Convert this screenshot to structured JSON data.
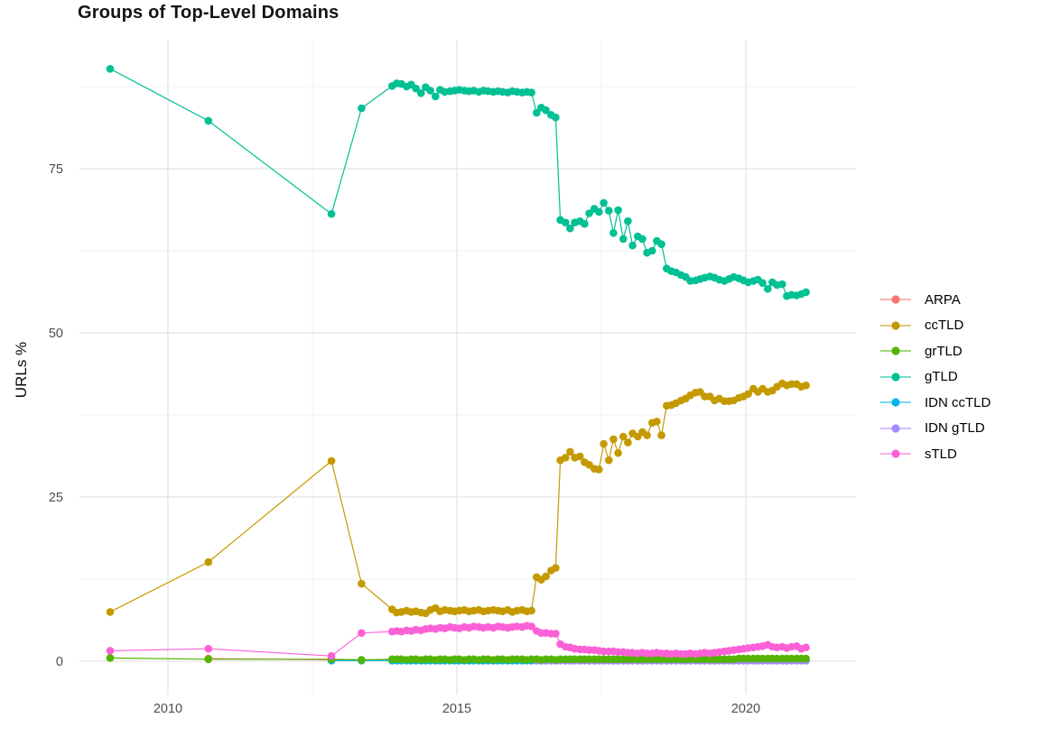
{
  "title": "Groups of Top-Level Domains",
  "y_axis": {
    "title": "URLs %",
    "tick_labels": [
      "0",
      "25",
      "50",
      "75"
    ]
  },
  "x_axis": {
    "tick_labels": [
      "2010",
      "2015",
      "2020"
    ]
  },
  "palette": {
    "ARPA": "#F8766D",
    "ccTLD": "#C49A00",
    "grTLD": "#53B400",
    "gTLD": "#00C094",
    "IDN ccTLD": "#00B6EB",
    "IDN gTLD": "#A58AFF",
    "sTLD": "#FB61D7",
    "grid_major": "#E4E4E4",
    "grid_minor": "#F0F0F0"
  },
  "chart_data": {
    "type": "line",
    "title": "Groups of Top-Level Domains",
    "xlabel": "",
    "ylabel": "URLs %",
    "legend_position": "right",
    "grid": true,
    "x_ticks": [
      2010,
      2015,
      2020
    ],
    "x_minor": [
      2012.5,
      2017.5
    ],
    "y_ticks": [
      0,
      25,
      50,
      75
    ],
    "y_minor": [
      12.5,
      37.5,
      62.5,
      87.5
    ],
    "xlim": [
      2008.45,
      2021.9
    ],
    "ylim": [
      -5,
      94.6
    ],
    "x": [
      2009.0,
      2010.7,
      2012.83,
      2013.35,
      2013.88,
      2013.96,
      2014.04,
      2014.13,
      2014.21,
      2014.29,
      2014.38,
      2014.46,
      2014.54,
      2014.63,
      2014.71,
      2014.79,
      2014.88,
      2014.96,
      2015.04,
      2015.13,
      2015.21,
      2015.29,
      2015.38,
      2015.46,
      2015.54,
      2015.63,
      2015.71,
      2015.79,
      2015.88,
      2015.96,
      2016.04,
      2016.13,
      2016.21,
      2016.29,
      2016.38,
      2016.46,
      2016.54,
      2016.63,
      2016.71,
      2016.79,
      2016.88,
      2016.96,
      2017.04,
      2017.13,
      2017.21,
      2017.29,
      2017.38,
      2017.46,
      2017.54,
      2017.63,
      2017.71,
      2017.79,
      2017.88,
      2017.96,
      2018.04,
      2018.13,
      2018.21,
      2018.29,
      2018.38,
      2018.46,
      2018.54,
      2018.63,
      2018.71,
      2018.79,
      2018.88,
      2018.96,
      2019.04,
      2019.13,
      2019.21,
      2019.29,
      2019.38,
      2019.46,
      2019.54,
      2019.63,
      2019.71,
      2019.79,
      2019.88,
      2019.96,
      2020.04,
      2020.13,
      2020.21,
      2020.29,
      2020.38,
      2020.46,
      2020.54,
      2020.63,
      2020.71,
      2020.79,
      2020.88,
      2020.96,
      2021.04
    ],
    "series": [
      {
        "name": "ARPA",
        "color": "#F8766D",
        "values": [
          null,
          0.4,
          0.2,
          0.2,
          0.1,
          0.1,
          0.1,
          0.1,
          0.1,
          0.1,
          0.1,
          0.1,
          0.1,
          0.1,
          0.1,
          0.1,
          0.1,
          0.1,
          0.1,
          0.1,
          0.1,
          0.1,
          0.1,
          0.1,
          0.1,
          0.1,
          0.1,
          0.1,
          0.1,
          0.1,
          0.1,
          0.1,
          0.1,
          0.1,
          0.1,
          0.1,
          0.1,
          0.1,
          0.1,
          0.1,
          0.1,
          0.1,
          0.1,
          0.1,
          0.1,
          0.1,
          0.1,
          0.1,
          0.1,
          0.1,
          0.1,
          0.1,
          0.1,
          0.1,
          0.1,
          0.1,
          0.1,
          0.1,
          0.1,
          0.1,
          0.1,
          0.1,
          0.1,
          0.1,
          0.1,
          0.1,
          0.1,
          0.1,
          0.1,
          0.1,
          0.1,
          0.1,
          0.1,
          0.1,
          0.1,
          0.1,
          0.1,
          0.1,
          0.1,
          0.1,
          0.1,
          0.1,
          0.1,
          0.1,
          0.1,
          0.1,
          0.1,
          0.1,
          0.1,
          0.1,
          0.1
        ]
      },
      {
        "name": "ccTLD",
        "color": "#C49A00",
        "values": [
          7.5,
          15.1,
          30.5,
          11.8,
          7.9,
          7.4,
          7.5,
          7.7,
          7.5,
          7.6,
          7.4,
          7.3,
          7.8,
          8.1,
          7.6,
          7.8,
          7.7,
          7.6,
          7.7,
          7.8,
          7.6,
          7.7,
          7.8,
          7.6,
          7.7,
          7.8,
          7.7,
          7.6,
          7.8,
          7.5,
          7.7,
          7.8,
          7.6,
          7.7,
          12.8,
          12.4,
          12.9,
          13.8,
          14.2,
          30.6,
          31.0,
          31.9,
          31.0,
          31.2,
          30.3,
          29.9,
          29.3,
          29.2,
          33.1,
          30.6,
          33.8,
          31.7,
          34.2,
          33.3,
          34.7,
          34.2,
          34.9,
          34.4,
          36.3,
          36.5,
          34.4,
          38.9,
          39.0,
          39.3,
          39.7,
          40.0,
          40.5,
          40.9,
          41.0,
          40.3,
          40.3,
          39.7,
          40.0,
          39.6,
          39.6,
          39.7,
          40.1,
          40.3,
          40.7,
          41.5,
          41.0,
          41.5,
          41.0,
          41.2,
          41.8,
          42.3,
          42.0,
          42.2,
          42.2,
          41.8,
          42.0
        ]
      },
      {
        "name": "grTLD",
        "color": "#53B400",
        "values": [
          0.5,
          0.3,
          0.3,
          0.2,
          0.3,
          0.3,
          0.3,
          0.2,
          0.3,
          0.3,
          0.2,
          0.3,
          0.3,
          0.2,
          0.3,
          0.3,
          0.2,
          0.3,
          0.3,
          0.2,
          0.3,
          0.3,
          0.2,
          0.3,
          0.3,
          0.2,
          0.3,
          0.3,
          0.2,
          0.3,
          0.3,
          0.3,
          0.2,
          0.3,
          0.3,
          0.2,
          0.3,
          0.3,
          0.2,
          0.3,
          0.3,
          0.3,
          0.3,
          0.3,
          0.3,
          0.3,
          0.3,
          0.3,
          0.3,
          0.3,
          0.3,
          0.3,
          0.3,
          0.3,
          0.3,
          0.3,
          0.3,
          0.3,
          0.3,
          0.3,
          0.3,
          0.3,
          0.3,
          0.3,
          0.3,
          0.3,
          0.3,
          0.3,
          0.3,
          0.3,
          0.3,
          0.3,
          0.3,
          0.3,
          0.3,
          0.3,
          0.4,
          0.4,
          0.4,
          0.4,
          0.4,
          0.4,
          0.4,
          0.4,
          0.4,
          0.4,
          0.4,
          0.4,
          0.4,
          0.4,
          0.4
        ]
      },
      {
        "name": "gTLD",
        "color": "#00C094",
        "values": [
          90.2,
          82.3,
          68.1,
          84.2,
          87.6,
          88.0,
          87.9,
          87.5,
          87.8,
          87.2,
          86.5,
          87.4,
          86.9,
          86.0,
          87.0,
          86.7,
          86.8,
          86.9,
          87.0,
          86.9,
          86.8,
          86.9,
          86.7,
          86.9,
          86.8,
          86.7,
          86.8,
          86.7,
          86.6,
          86.8,
          86.7,
          86.6,
          86.7,
          86.6,
          83.5,
          84.3,
          83.9,
          83.2,
          82.8,
          67.2,
          66.8,
          65.9,
          66.8,
          67.0,
          66.6,
          68.2,
          68.9,
          68.4,
          69.8,
          68.6,
          65.2,
          68.7,
          64.3,
          67.0,
          63.3,
          64.7,
          64.3,
          62.2,
          62.5,
          64.0,
          63.5,
          59.8,
          59.4,
          59.2,
          58.8,
          58.5,
          57.9,
          58.0,
          58.2,
          58.4,
          58.6,
          58.4,
          58.1,
          57.9,
          58.2,
          58.5,
          58.3,
          58.0,
          57.7,
          57.9,
          58.1,
          57.6,
          56.7,
          57.7,
          57.3,
          57.4,
          55.6,
          55.8,
          55.7,
          55.9,
          56.2
        ]
      },
      {
        "name": "IDN ccTLD",
        "color": "#00B6EB",
        "values": [
          null,
          null,
          0.1,
          0.1,
          0.1,
          0.1,
          0.1,
          0.1,
          0.1,
          0.1,
          0.1,
          0.1,
          0.1,
          0.1,
          0.1,
          0.1,
          0.1,
          0.1,
          0.1,
          0.1,
          0.1,
          0.1,
          0.1,
          0.1,
          0.1,
          0.1,
          0.1,
          0.1,
          0.1,
          0.1,
          0.1,
          0.1,
          0.1,
          0.1,
          0.1,
          0.1,
          0.1,
          0.1,
          0.1,
          0.1,
          0.1,
          0.1,
          0.1,
          0.1,
          0.1,
          0.1,
          0.1,
          0.1,
          0.1,
          0.1,
          0.1,
          0.1,
          0.1,
          0.1,
          0.1,
          0.1,
          0.1,
          0.1,
          0.1,
          0.1,
          0.1,
          0.1,
          0.1,
          0.1,
          0.1,
          0.1,
          0.1,
          0.1,
          0.1,
          0.1,
          0.1,
          0.1,
          0.1,
          0.1,
          0.1,
          0.1,
          0.1,
          0.1,
          0.1,
          0.1,
          0.1,
          0.1,
          0.1,
          0.1,
          0.1,
          0.1,
          0.1,
          0.1,
          0.1,
          0.1,
          0.1
        ]
      },
      {
        "name": "IDN gTLD",
        "color": "#A58AFF",
        "values": [
          null,
          null,
          null,
          null,
          null,
          null,
          null,
          null,
          null,
          null,
          null,
          null,
          null,
          null,
          null,
          null,
          null,
          null,
          null,
          null,
          null,
          null,
          null,
          null,
          null,
          null,
          null,
          null,
          null,
          null,
          null,
          null,
          null,
          null,
          0.1,
          0.1,
          0.1,
          0.1,
          0.1,
          0.1,
          0.1,
          0.1,
          0.1,
          0.1,
          0.1,
          0.1,
          0.1,
          0.1,
          0.1,
          0.1,
          0.1,
          0.1,
          0.1,
          0.1,
          0.1,
          0.1,
          0.1,
          0.1,
          0.1,
          0.1,
          0.1,
          0.1,
          0.1,
          0.1,
          0.1,
          0.1,
          0.1,
          0.1,
          0.1,
          0.1,
          0.1,
          0.1,
          0.1,
          0.1,
          0.1,
          0.1,
          0.1,
          0.1,
          0.1,
          0.1,
          0.1,
          0.1,
          0.1,
          0.1,
          0.1,
          0.1,
          0.1,
          0.1,
          0.1,
          0.1,
          0.1
        ]
      },
      {
        "name": "sTLD",
        "color": "#FB61D7",
        "values": [
          1.6,
          1.9,
          0.8,
          4.3,
          4.5,
          4.6,
          4.5,
          4.7,
          4.6,
          4.8,
          4.7,
          4.9,
          5.0,
          4.9,
          5.1,
          5.0,
          5.2,
          5.1,
          5.0,
          5.2,
          5.1,
          5.3,
          5.2,
          5.1,
          5.2,
          5.1,
          5.3,
          5.2,
          5.1,
          5.2,
          5.3,
          5.2,
          5.4,
          5.3,
          4.6,
          4.3,
          4.3,
          4.2,
          4.2,
          2.6,
          2.2,
          2.1,
          1.9,
          1.8,
          1.8,
          1.7,
          1.7,
          1.6,
          1.5,
          1.5,
          1.5,
          1.4,
          1.4,
          1.3,
          1.3,
          1.2,
          1.3,
          1.2,
          1.2,
          1.3,
          1.2,
          1.2,
          1.1,
          1.2,
          1.1,
          1.1,
          1.2,
          1.1,
          1.2,
          1.3,
          1.2,
          1.3,
          1.4,
          1.5,
          1.6,
          1.7,
          1.8,
          1.9,
          2.0,
          2.1,
          2.2,
          2.3,
          2.5,
          2.2,
          2.1,
          2.2,
          2.0,
          2.2,
          2.3,
          1.9,
          2.1
        ]
      }
    ]
  }
}
